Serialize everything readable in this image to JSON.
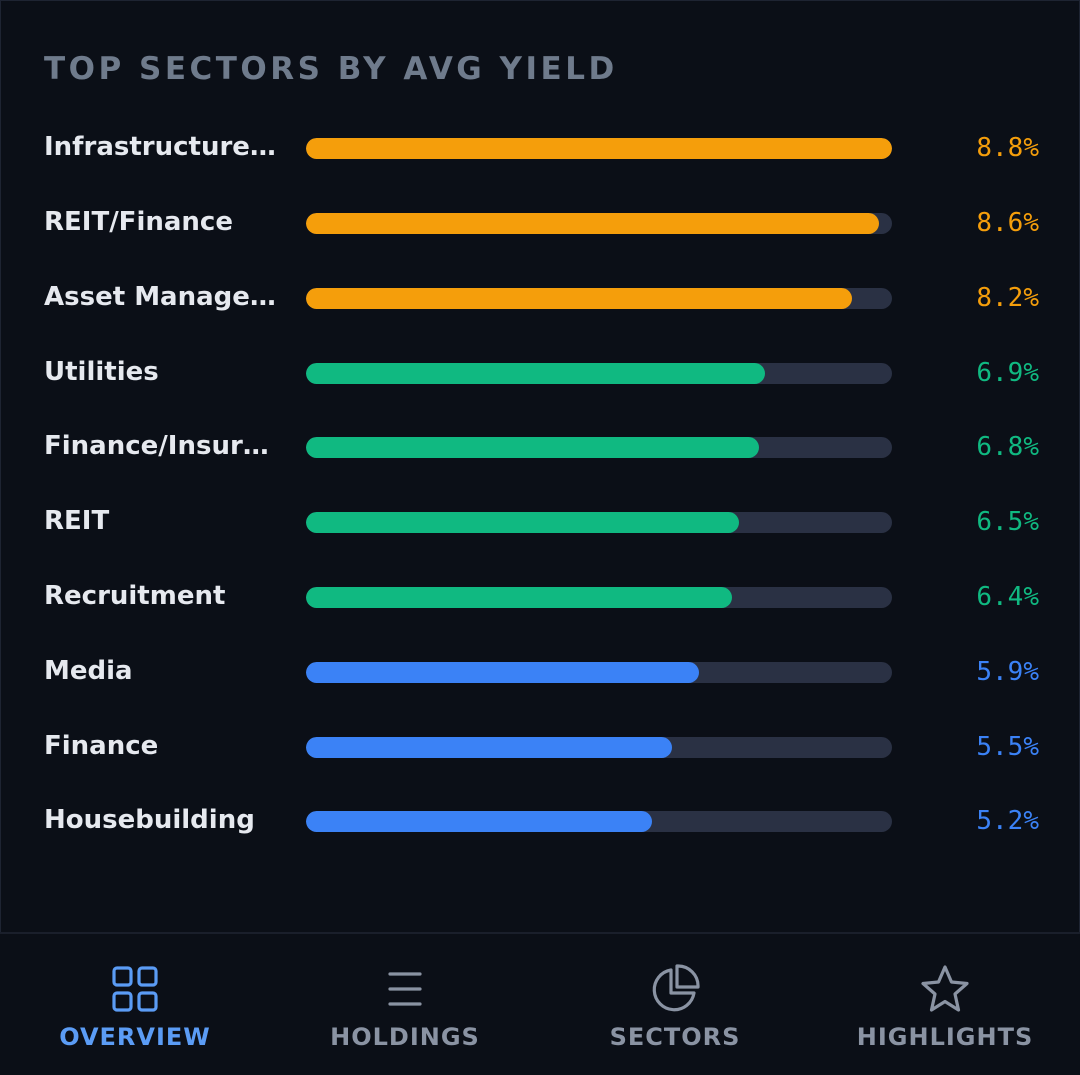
{
  "section": {
    "title": "TOP SECTORS BY AVG YIELD"
  },
  "colors": {
    "orange": "#f59e0b",
    "green": "#10b981",
    "blue": "#3b82f6",
    "track": "#2a3144",
    "active_nav": "#5b9cf5",
    "inactive_nav": "#8a93a3"
  },
  "sectors": [
    {
      "label": "Infrastructure/R…",
      "value_text": "8.8%",
      "yield": 8.8,
      "tier": "orange"
    },
    {
      "label": "REIT/Finance",
      "value_text": "8.6%",
      "yield": 8.6,
      "tier": "orange"
    },
    {
      "label": "Asset Managem…",
      "value_text": "8.2%",
      "yield": 8.2,
      "tier": "orange"
    },
    {
      "label": "Utilities",
      "value_text": "6.9%",
      "yield": 6.9,
      "tier": "green"
    },
    {
      "label": "Finance/Insuran…",
      "value_text": "6.8%",
      "yield": 6.8,
      "tier": "green"
    },
    {
      "label": "REIT",
      "value_text": "6.5%",
      "yield": 6.5,
      "tier": "green"
    },
    {
      "label": "Recruitment",
      "value_text": "6.4%",
      "yield": 6.4,
      "tier": "green"
    },
    {
      "label": "Media",
      "value_text": "5.9%",
      "yield": 5.9,
      "tier": "blue"
    },
    {
      "label": "Finance",
      "value_text": "5.5%",
      "yield": 5.5,
      "tier": "blue"
    },
    {
      "label": "Housebuilding",
      "value_text": "5.2%",
      "yield": 5.2,
      "tier": "blue"
    }
  ],
  "scale_max": 8.8,
  "nav": {
    "overview": {
      "label": "OVERVIEW",
      "icon": "grid-icon",
      "active": true
    },
    "holdings": {
      "label": "HOLDINGS",
      "icon": "list-icon",
      "active": false
    },
    "sectors": {
      "label": "SECTORS",
      "icon": "pie-chart-icon",
      "active": false
    },
    "highlights": {
      "label": "HIGHLIGHTS",
      "icon": "star-icon",
      "active": false
    }
  }
}
